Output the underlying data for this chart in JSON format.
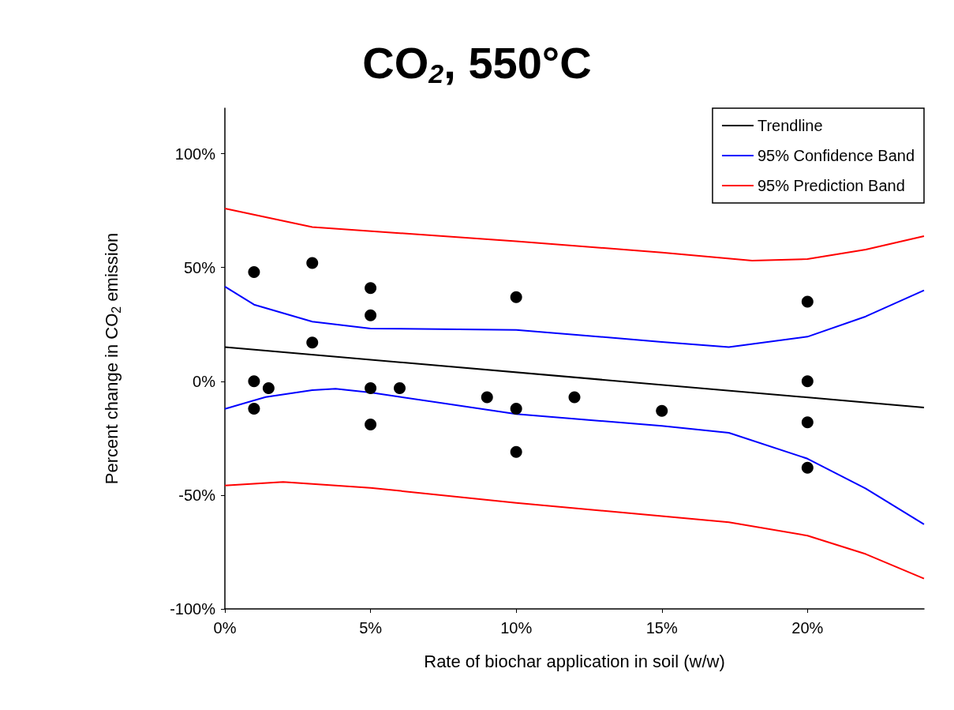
{
  "chart_data": {
    "type": "scatter",
    "title": "CO$_{2}$, 550°C",
    "xlabel": "Rate of biochar application in soil (w/w)",
    "ylabel": "Percent change in CO$_{2}$ emission",
    "xlim": [
      0,
      24
    ],
    "xticks": [
      {
        "value": 0,
        "label": "0%"
      },
      {
        "value": 5,
        "label": "5%"
      },
      {
        "value": 10,
        "label": "10%"
      },
      {
        "value": 15,
        "label": "15%"
      },
      {
        "value": 20,
        "label": "20%"
      }
    ],
    "ylim": [
      -100,
      120
    ],
    "yticks": [
      {
        "value": -100,
        "label": "-100%"
      },
      {
        "value": -50,
        "label": "-50%"
      },
      {
        "value": 0,
        "label": "0%"
      },
      {
        "value": 50,
        "label": "50%"
      },
      {
        "value": 100,
        "label": "100%"
      }
    ],
    "grid": false,
    "legend": "top right",
    "series": [
      {
        "marker": "circle",
        "color": "#000000",
        "x": [
          1,
          1,
          1,
          1.5,
          3,
          3,
          5,
          5,
          5,
          5,
          6,
          9,
          10,
          10,
          10,
          12,
          15,
          20,
          20,
          20,
          20
        ],
        "values": [
          48,
          0,
          -12,
          -3,
          52,
          17,
          41,
          29,
          -3,
          -19,
          -3,
          -7,
          37,
          -12,
          -31,
          -7,
          -13,
          35,
          0,
          -18,
          -38
        ]
      },
      {
        "type": "line",
        "name": "Trendline",
        "marker": "none",
        "color": "#000000",
        "x": [
          0,
          24
        ],
        "values": [
          15,
          -11.5
        ]
      },
      {
        "type": "line",
        "name": "95% Confidence Band",
        "marker": "none",
        "color": "#0000ff",
        "x": [
          0,
          1,
          3,
          5,
          10,
          15,
          17.3,
          20,
          22,
          24
        ],
        "values": [
          41.6,
          33.7,
          26.2,
          23.2,
          22.6,
          17.3,
          15,
          19.6,
          28.5,
          40
        ]
      },
      {
        "type": "line",
        "marker": "none",
        "color": "#0000ff",
        "x": [
          0,
          1.4,
          3,
          3.8,
          5,
          10,
          15,
          17.3,
          20,
          22,
          24
        ],
        "values": [
          -12.1,
          -6.9,
          -3.9,
          -3.3,
          -4.9,
          -14.4,
          -19.6,
          -22.6,
          -34,
          -47.1,
          -62.8
        ]
      },
      {
        "type": "line",
        "name": "95% Prediction Band",
        "marker": "none",
        "color": "#ff0000",
        "x": [
          0,
          3,
          10,
          15,
          18.1,
          20,
          22,
          24
        ],
        "values": [
          75.9,
          67.8,
          61.5,
          56.6,
          53,
          53.7,
          57.9,
          63.8
        ]
      },
      {
        "type": "line",
        "marker": "none",
        "color": "#ff0000",
        "x": [
          0,
          2,
          5,
          10,
          15,
          17.3,
          20,
          22,
          24
        ],
        "values": [
          -45.8,
          -44.2,
          -46.8,
          -53.4,
          -59.2,
          -61.9,
          -67.8,
          -75.9,
          -86.7
        ]
      }
    ]
  }
}
